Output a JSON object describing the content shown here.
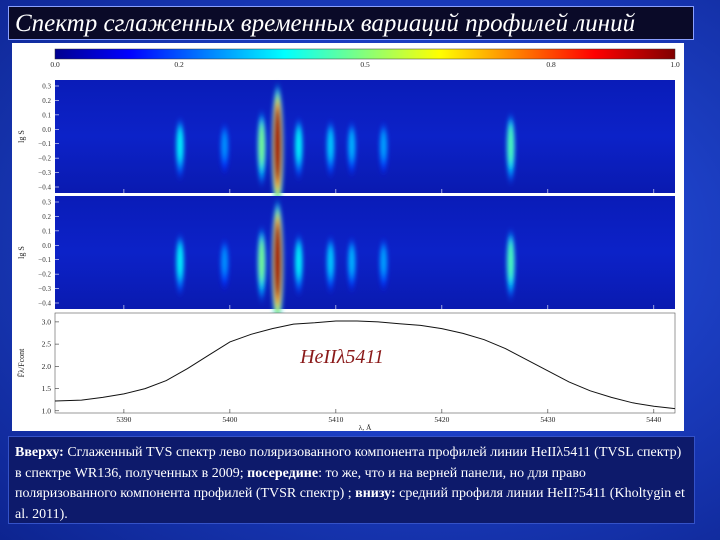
{
  "title": "Спектр сглаженных временных вариаций профилей линий",
  "chart_data": {
    "type": "heatmap",
    "colorbar": {
      "ticks": [
        "0.0",
        "0.2",
        "0.5",
        "0.8",
        "1.0"
      ],
      "tick_values": [
        0.0,
        0.2,
        0.5,
        0.8,
        1.0
      ],
      "colormap": "jet"
    },
    "panels": [
      {
        "name": "TVSL",
        "ylabel": "lg S",
        "yticks": [
          "0.3",
          "0.2",
          "0.1",
          "0.0",
          "−0.1",
          "−0.2",
          "−0.3",
          "−0.4"
        ],
        "ytick_values": [
          0.3,
          0.2,
          0.1,
          0.0,
          -0.1,
          -0.2,
          -0.3,
          -0.4
        ]
      },
      {
        "name": "TVSR",
        "ylabel": "lg S",
        "yticks": [
          "0.3",
          "0.2",
          "0.1",
          "0.0",
          "−0.1",
          "−0.2",
          "−0.3",
          "−0.4"
        ],
        "ytick_values": [
          0.3,
          0.2,
          0.1,
          0.0,
          -0.1,
          -0.2,
          -0.3,
          -0.4
        ]
      }
    ],
    "features": [
      {
        "x": 5395.3,
        "intensity": 0.3
      },
      {
        "x": 5399.5,
        "intensity": 0.18
      },
      {
        "x": 5403.0,
        "intensity": 0.45
      },
      {
        "x": 5404.5,
        "intensity": 1.0
      },
      {
        "x": 5406.5,
        "intensity": 0.3
      },
      {
        "x": 5409.5,
        "intensity": 0.25
      },
      {
        "x": 5411.5,
        "intensity": 0.22
      },
      {
        "x": 5414.5,
        "intensity": 0.2
      },
      {
        "x": 5426.5,
        "intensity": 0.4
      }
    ],
    "profile": {
      "ylabel": "F̄λ/Fcont",
      "xlabel": "λ, Å",
      "xticks": [
        "5390",
        "5400",
        "5410",
        "5420",
        "5430",
        "5440"
      ],
      "xtick_values": [
        5390,
        5400,
        5410,
        5420,
        5430,
        5440
      ],
      "yticks": [
        "3.0",
        "2.5",
        "2.0",
        "1.5",
        "1.0"
      ],
      "ytick_values": [
        3.0,
        2.5,
        2.0,
        1.5,
        1.0
      ],
      "xlim": [
        5383.5,
        5442
      ],
      "ylim": [
        0.95,
        3.2
      ],
      "x": [
        5383.5,
        5386,
        5388,
        5390,
        5392,
        5394,
        5396,
        5398,
        5400,
        5402,
        5404,
        5406,
        5408,
        5410,
        5412,
        5414,
        5416,
        5418,
        5420,
        5422,
        5424,
        5426,
        5428,
        5430,
        5432,
        5434,
        5436,
        5438,
        5440,
        5442
      ],
      "y": [
        1.22,
        1.24,
        1.3,
        1.38,
        1.5,
        1.68,
        1.95,
        2.25,
        2.55,
        2.72,
        2.85,
        2.95,
        2.98,
        3.02,
        3.02,
        3.0,
        2.96,
        2.92,
        2.85,
        2.74,
        2.6,
        2.4,
        2.15,
        1.9,
        1.65,
        1.45,
        1.3,
        1.18,
        1.1,
        1.05
      ],
      "annotation": "HeIIλ5411"
    }
  },
  "caption": {
    "top_label": "Вверху:",
    "top_text": " Сглаженный TVS спектр  лево поляризованного компонента профилей линии  HeIIλ5411 (TVSL  спектр) в спектре WR136, полученных в 2009; ",
    "middle_label": "посередине",
    "middle_text": ":  то же, что и на верней панели, но для право поляризованного компонента профилей  (TVSR  спектр) ; ",
    "bottom_label": "внизу:",
    "bottom_text": " средний профиля линии HeII?5411 (Kholtygin et al. 2011)."
  }
}
